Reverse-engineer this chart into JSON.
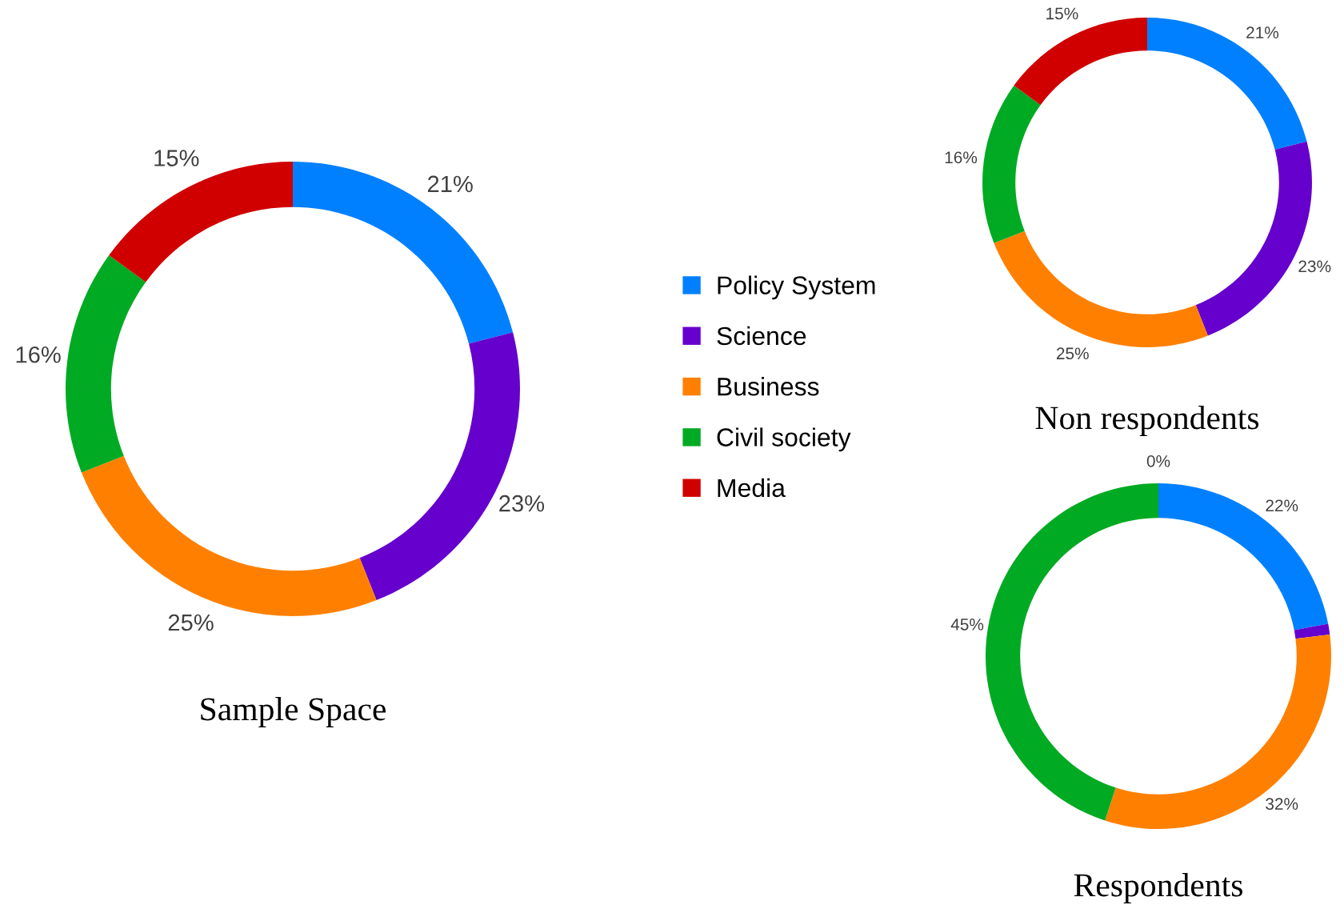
{
  "chart_data": [
    {
      "type": "donut",
      "title": "Sample Space",
      "categories": [
        "Policy System",
        "Science",
        "Business",
        "Civil society",
        "Media"
      ],
      "values": [
        21,
        23,
        25,
        16,
        15
      ],
      "value_labels": [
        "21%",
        "23%",
        "25%",
        "16%",
        "15%"
      ],
      "colors": [
        "#0080ff",
        "#6600cc",
        "#ff8000",
        "#00aa22",
        "#d00000"
      ],
      "legend": "right"
    },
    {
      "type": "donut",
      "title": "Non respondents",
      "categories": [
        null,
        null,
        null,
        null,
        null
      ],
      "values": [
        21,
        23,
        25,
        16,
        15
      ],
      "value_labels": [
        "21%",
        "23%",
        "25%",
        "16%",
        "15%"
      ],
      "colors": [
        "#0080ff",
        "#6600cc",
        "#ff8000",
        "#00aa22",
        "#d00000"
      ]
    },
    {
      "type": "donut",
      "title": "Respondents",
      "categories": [
        null,
        null,
        null,
        null,
        null
      ],
      "values": [
        22,
        1,
        32,
        45,
        0
      ],
      "value_labels": [
        "22%",
        null,
        "32%",
        "45%",
        "0%"
      ],
      "colors": [
        "#0080ff",
        "#6600cc",
        "#ff8000",
        "#00aa22",
        "#d00000"
      ]
    }
  ]
}
